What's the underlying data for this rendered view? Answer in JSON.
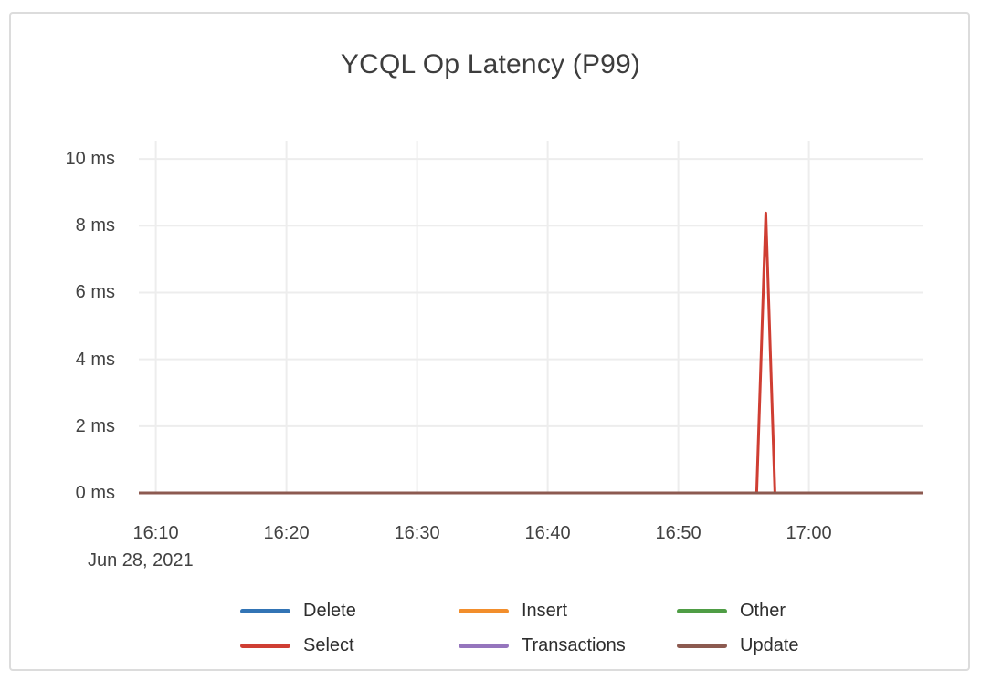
{
  "window": {
    "title": "YCQL Op Latency (P99)"
  },
  "chart_data": {
    "type": "line",
    "title": "YCQL Op Latency (P99)",
    "x_axis": {
      "unit": "time of day (HH:MM)",
      "date_label": "Jun 28, 2021",
      "x_unit_note": "x values are minutes after 16:00",
      "range": [
        8.7,
        68.7
      ],
      "ticks": [
        {
          "value": 10,
          "label": "16:10"
        },
        {
          "value": 20,
          "label": "16:20"
        },
        {
          "value": 30,
          "label": "16:30"
        },
        {
          "value": 40,
          "label": "16:40"
        },
        {
          "value": 50,
          "label": "16:50"
        },
        {
          "value": 60,
          "label": "17:00"
        }
      ]
    },
    "y_axis": {
      "unit": "ms",
      "range": [
        0,
        10.55
      ],
      "ticks": [
        {
          "value": 0,
          "label": "0 ms"
        },
        {
          "value": 2,
          "label": "2 ms"
        },
        {
          "value": 4,
          "label": "4 ms"
        },
        {
          "value": 6,
          "label": "6 ms"
        },
        {
          "value": 8,
          "label": "8 ms"
        },
        {
          "value": 10,
          "label": "10 ms"
        }
      ]
    },
    "grid": true,
    "grid_color": "#ededed",
    "legend_position": "bottom",
    "series": [
      {
        "name": "Delete",
        "color": "#3274b5",
        "points": [
          [
            8.7,
            0
          ],
          [
            68.7,
            0
          ]
        ]
      },
      {
        "name": "Insert",
        "color": "#f28e2c",
        "points": [
          [
            8.7,
            0
          ],
          [
            68.7,
            0
          ]
        ]
      },
      {
        "name": "Other",
        "color": "#4f9d45",
        "points": [
          [
            8.7,
            0
          ],
          [
            68.7,
            0
          ]
        ]
      },
      {
        "name": "Select",
        "color": "#cf3e33",
        "points": [
          [
            8.7,
            0
          ],
          [
            56.0,
            0
          ],
          [
            56.7,
            8.38
          ],
          [
            57.4,
            0
          ],
          [
            68.7,
            0
          ]
        ]
      },
      {
        "name": "Transactions",
        "color": "#9575bd",
        "points": [
          [
            8.7,
            0
          ],
          [
            68.7,
            0
          ]
        ]
      },
      {
        "name": "Update",
        "color": "#8c5a50",
        "points": [
          [
            8.7,
            0
          ],
          [
            68.7,
            0
          ]
        ]
      }
    ]
  }
}
